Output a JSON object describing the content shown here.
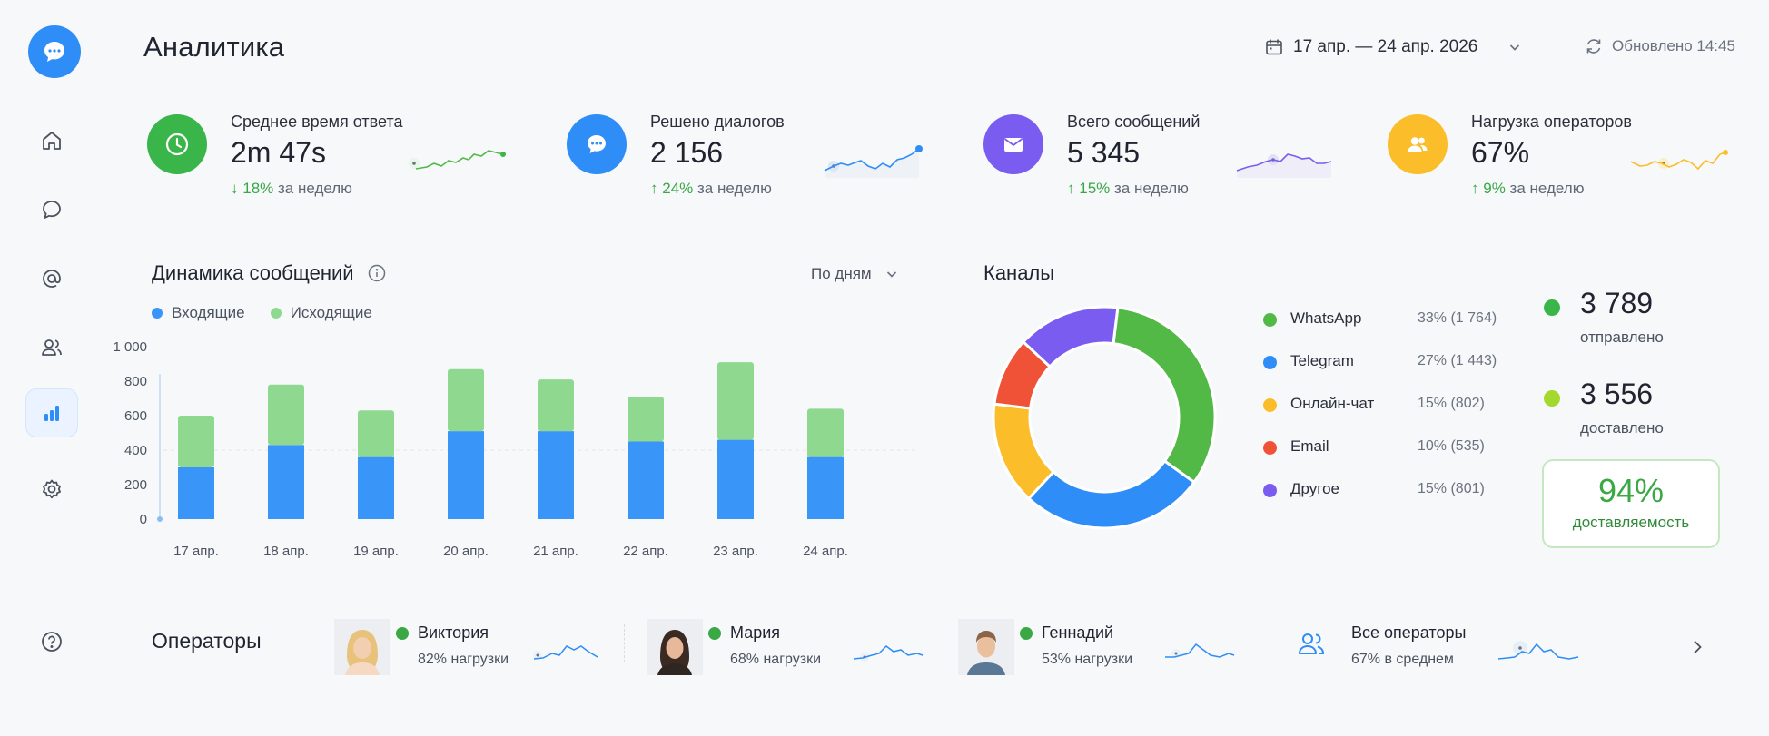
{
  "header": {
    "title": "Аналитика",
    "date_range": "17 апр. — 24 апр. 2026",
    "updated": "Обновлено 14:45"
  },
  "sidebar": {
    "items": [
      {
        "icon": "home-icon"
      },
      {
        "icon": "chat-icon"
      },
      {
        "icon": "at-sign-icon"
      },
      {
        "icon": "users-icon"
      },
      {
        "icon": "bar-chart-icon",
        "active": true
      },
      {
        "icon": "gear-icon"
      }
    ],
    "help_icon": "help-icon"
  },
  "kpis": [
    {
      "label": "Среднее время ответа",
      "value": "2m 47s",
      "delta": "18%",
      "delta_suffix": "за неделю",
      "direction": "down",
      "color": "#3ab54a",
      "icon": "clock-icon"
    },
    {
      "label": "Решено диалогов",
      "value": "2 156",
      "delta": "24%",
      "delta_suffix": "за неделю",
      "direction": "up",
      "color": "#2f8df7",
      "icon": "chat-bubble-icon"
    },
    {
      "label": "Всего сообщений",
      "value": "5 345",
      "delta": "15%",
      "delta_suffix": "за неделю",
      "direction": "up",
      "color": "#7b5cf0",
      "icon": "envelope-icon"
    },
    {
      "label": "Нагрузка операторов",
      "value": "67%",
      "delta": "9%",
      "delta_suffix": "за неделю",
      "direction": "up",
      "color": "#fbbd2a",
      "icon": "users-icon"
    }
  ],
  "dynamics": {
    "title": "Динамика сообщений",
    "period": "По дням",
    "legend": [
      {
        "name": "Входящие",
        "color": "#3a95f8"
      },
      {
        "name": "Исходящие",
        "color": "#8fd88f"
      }
    ]
  },
  "chart_data": [
    {
      "type": "bar",
      "stacked": true,
      "title": "Динамика сообщений",
      "categories": [
        "17 апр.",
        "18 апр.",
        "19 апр.",
        "20 апр.",
        "21 апр.",
        "22 апр.",
        "23 апр.",
        "24 апр."
      ],
      "series": [
        {
          "name": "Входящие",
          "values": [
            300,
            430,
            360,
            510,
            510,
            450,
            460,
            360
          ]
        },
        {
          "name": "Исходящие",
          "values": [
            300,
            350,
            270,
            360,
            300,
            260,
            450,
            280
          ]
        }
      ],
      "yticks": [
        "0",
        "200",
        "400",
        "600",
        "800",
        "1 000"
      ],
      "ylim": [
        0,
        1000
      ],
      "grid": false
    },
    {
      "type": "pie",
      "title": "Каналы",
      "categories": [
        "WhatsApp",
        "Telegram",
        "Онлайн-чат",
        "Email",
        "Другое"
      ],
      "values": [
        1764,
        1443,
        802,
        535,
        801
      ],
      "percent": [
        33,
        27,
        15,
        10,
        15
      ]
    }
  ],
  "channels": {
    "title": "Каналы",
    "items": [
      {
        "name": "WhatsApp",
        "share": "33% (1 764)",
        "color": "#52b947"
      },
      {
        "name": "Telegram",
        "share": "27% (1 443)",
        "color": "#2f8df7"
      },
      {
        "name": "Онлайн-чат",
        "share": "15% (802)",
        "color": "#fbbd2a"
      },
      {
        "name": "Email",
        "share": "10% (535)",
        "color": "#ef5236"
      },
      {
        "name": "Другое",
        "share": "15% (801)",
        "color": "#7b5cf0"
      }
    ]
  },
  "delivery": {
    "sent": "3 789",
    "sent_label": "отправлено",
    "delivered": "3 556",
    "delivered_label": "доставлено",
    "rate": "94%",
    "rate_label": "доставляемость"
  },
  "operators": {
    "title": "Операторы",
    "list": [
      {
        "name": "Виктория",
        "load": "82% нагрузки"
      },
      {
        "name": "Мария",
        "load": "68% нагрузки"
      },
      {
        "name": "Геннадий",
        "load": "53% нагрузки"
      }
    ],
    "all": {
      "name": "Все операторы",
      "load": "67% в среднем"
    }
  }
}
